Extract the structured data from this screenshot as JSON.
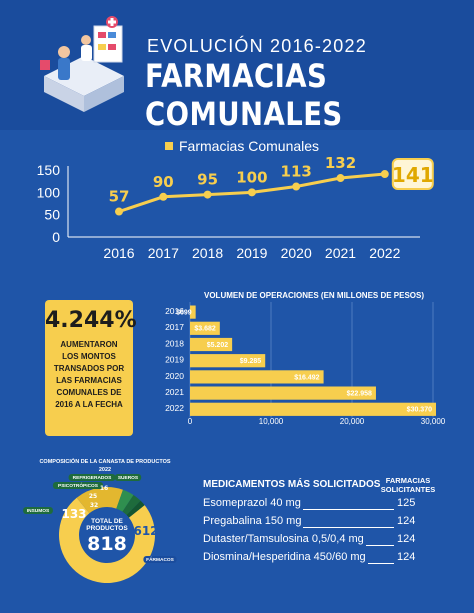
{
  "header": {
    "title_top": "EVOLUCIÓN 2016-2022",
    "title_main": "FARMACIAS COMUNALES"
  },
  "colors": {
    "background": "#1F55A8",
    "accent": "#F7CE4E",
    "dark_yellow": "#E3B72F",
    "green": "#1E6B3C"
  },
  "chart_data": [
    {
      "type": "line",
      "legend": "Farmacias Comunales",
      "x": [
        "2016",
        "2017",
        "2018",
        "2019",
        "2020",
        "2021",
        "2022"
      ],
      "series": [
        {
          "name": "Farmacias Comunales",
          "values": [
            57,
            90,
            95,
            100,
            113,
            132,
            141
          ]
        }
      ],
      "y_ticks": [
        "0",
        "50",
        "100",
        "150"
      ],
      "ylim": [
        0,
        150
      ],
      "legend_position": "top"
    },
    {
      "type": "bar",
      "orientation": "horizontal",
      "title": "VOLUMEN DE OPERACIONES (EN MILLONES DE PESOS)",
      "categories": [
        "2016",
        "2017",
        "2018",
        "2019",
        "2020",
        "2021",
        "2022"
      ],
      "values": [
        699,
        3682,
        5202,
        9285,
        16492,
        22958,
        30370
      ],
      "value_labels": [
        "$699",
        "$3.682",
        "$5.202",
        "$9.285",
        "$16.492",
        "$22.958",
        "$30.370"
      ],
      "x_ticks": [
        "0",
        "10,000",
        "20,000",
        "30,000"
      ],
      "xlim": [
        0,
        30000
      ],
      "grid": true
    },
    {
      "type": "pie",
      "title_line1": "COMPOSICIÓN DE LA CANASTA DE PRODUCTOS",
      "title_line2": "2022",
      "center_label_line1": "TOTAL DE",
      "center_label_line2": "PRODUCTOS",
      "center_value": "818",
      "slices": [
        {
          "name": "FÁRMACOS",
          "value": 612,
          "label": "612"
        },
        {
          "name": "INSUMOS",
          "value": 133,
          "label": "133"
        },
        {
          "name": "PSICOTRÓPICOS",
          "value": 32,
          "label": "32"
        },
        {
          "name": "REFRIGERADOS",
          "value": 25,
          "label": "25"
        },
        {
          "name": "SUEROS",
          "value": 16,
          "label": "16"
        }
      ]
    }
  ],
  "highlight": {
    "percent": "4.244%",
    "text_lines": [
      "AUMENTARON",
      "LOS MONTOS",
      "TRANSADOS POR",
      "LAS FARMACIAS",
      "COMUNALES DE",
      "2016 A LA FECHA"
    ]
  },
  "medicamentos": {
    "title": "MEDICAMENTOS MÁS SOLICITADOS",
    "col_head_line1": "FARMACIAS",
    "col_head_line2": "SOLICITANTES",
    "rows": [
      {
        "name": "Esomeprazol 40 mg",
        "count": "125"
      },
      {
        "name": "Pregabalina 150 mg",
        "count": "124"
      },
      {
        "name": "Dutaster/Tamsulosina 0,5/0,4 mg",
        "count": "124"
      },
      {
        "name": "Diosmina/Hesperidina 450/60 mg",
        "count": "124"
      }
    ]
  }
}
